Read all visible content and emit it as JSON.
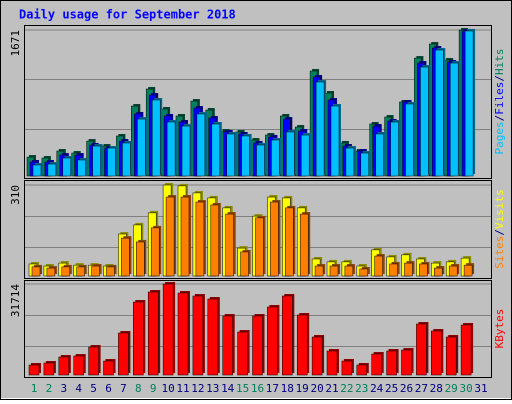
{
  "title": "Daily usage for September 2018",
  "separator": "/",
  "chart_data": [
    {
      "type": "bar",
      "ylim": [
        0,
        1671
      ],
      "yticks": [
        1671
      ],
      "series": [
        {
          "name": "Hits",
          "color": "#00805c",
          "values": [
            217,
            206,
            286,
            263,
            400,
            343,
            458,
            801,
            996,
            767,
            687,
            858,
            755,
            515,
            504,
            412,
            469,
            687,
            561,
            1202,
            950,
            378,
            286,
            595,
            675,
            847,
            1350,
            1511,
            1328,
            1671,
            null
          ]
        },
        {
          "name": "Files",
          "color": "#0000ff",
          "values": [
            160,
            160,
            240,
            240,
            355,
            320,
            400,
            710,
            927,
            687,
            618,
            778,
            664,
            504,
            481,
            378,
            447,
            652,
            515,
            1133,
            870,
            343,
            286,
            572,
            629,
            847,
            1293,
            1465,
            1305,
            1660,
            null
          ]
        },
        {
          "name": "Pages",
          "color": "#00c0ff",
          "values": [
            126,
            137,
            206,
            183,
            343,
            320,
            378,
            652,
            870,
            618,
            572,
            710,
            595,
            481,
            458,
            355,
            412,
            504,
            469,
            1076,
            801,
            320,
            263,
            481,
            618,
            824,
            1247,
            1442,
            1293,
            1660,
            null
          ]
        }
      ]
    },
    {
      "type": "bar",
      "ylim": [
        0,
        310
      ],
      "yticks": [
        310
      ],
      "series": [
        {
          "name": "Visits",
          "color": "#ffff00",
          "values": [
            41,
            34,
            44,
            37,
            37,
            34,
            143,
            174,
            215,
            310,
            307,
            283,
            266,
            232,
            95,
            204,
            269,
            266,
            232,
            58,
            48,
            48,
            34,
            89,
            65,
            72,
            58,
            44,
            48,
            61,
            null
          ]
        },
        {
          "name": "Sites",
          "color": "#ff8000",
          "values": [
            31,
            27,
            31,
            31,
            34,
            31,
            129,
            116,
            164,
            269,
            269,
            252,
            242,
            211,
            82,
            198,
            252,
            232,
            211,
            34,
            34,
            34,
            24,
            68,
            41,
            44,
            41,
            27,
            34,
            37,
            null
          ]
        }
      ]
    },
    {
      "type": "bar",
      "ylim": [
        0,
        31714
      ],
      "yticks": [
        31714
      ],
      "categories": [
        "1",
        "2",
        "3",
        "4",
        "5",
        "6",
        "7",
        "8",
        "9",
        "10",
        "11",
        "12",
        "13",
        "14",
        "15",
        "16",
        "17",
        "18",
        "19",
        "20",
        "21",
        "22",
        "23",
        "24",
        "25",
        "26",
        "27",
        "28",
        "29",
        "30",
        "31"
      ],
      "category_colors": [
        "#00805c",
        "#00805c",
        "#000080",
        "#000080",
        "#000080",
        "#000080",
        "#000080",
        "#00805c",
        "#00805c",
        "#000080",
        "#000080",
        "#000080",
        "#000080",
        "#000080",
        "#00805c",
        "#00805c",
        "#000080",
        "#000080",
        "#000080",
        "#000080",
        "#000080",
        "#00805c",
        "#00805c",
        "#000080",
        "#000080",
        "#000080",
        "#000080",
        "#000080",
        "#00805c",
        "#00805c",
        "#000080"
      ],
      "series": [
        {
          "name": "KBytes",
          "color": "#ff0000",
          "values": [
            3485,
            4182,
            6273,
            6622,
            9758,
            4879,
            14637,
            25441,
            28926,
            31714,
            28578,
            27532,
            26487,
            20562,
            14985,
            20562,
            23699,
            27532,
            20911,
            13243,
            8364,
            4879,
            3485,
            7319,
            8364,
            8713,
            17773,
            15334,
            13243,
            17425,
            null
          ]
        }
      ]
    }
  ]
}
